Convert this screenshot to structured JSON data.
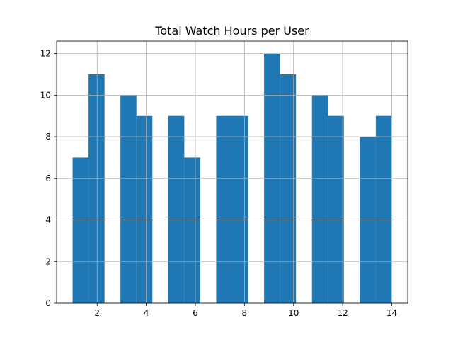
{
  "chart_data": {
    "type": "bar",
    "title": "Total Watch Hours per User",
    "xlabel": "",
    "ylabel": "",
    "xlim": [
      0.35,
      14.65
    ],
    "ylim": [
      0,
      12.6
    ],
    "x_ticks": [
      2,
      4,
      6,
      8,
      10,
      12,
      14
    ],
    "y_ticks": [
      0,
      2,
      4,
      6,
      8,
      10,
      12
    ],
    "grid": true,
    "bins": [
      {
        "x0": 1.0,
        "x1": 1.65,
        "value": 7
      },
      {
        "x0": 1.65,
        "x1": 2.3,
        "value": 11
      },
      {
        "x0": 2.3,
        "x1": 2.95,
        "value": 0
      },
      {
        "x0": 2.95,
        "x1": 3.6,
        "value": 10
      },
      {
        "x0": 3.6,
        "x1": 4.25,
        "value": 9
      },
      {
        "x0": 4.25,
        "x1": 4.9,
        "value": 0
      },
      {
        "x0": 4.9,
        "x1": 5.55,
        "value": 9
      },
      {
        "x0": 5.55,
        "x1": 6.2,
        "value": 7
      },
      {
        "x0": 6.2,
        "x1": 6.85,
        "value": 0
      },
      {
        "x0": 6.85,
        "x1": 7.5,
        "value": 9
      },
      {
        "x0": 7.5,
        "x1": 8.15,
        "value": 9
      },
      {
        "x0": 8.15,
        "x1": 8.8,
        "value": 0
      },
      {
        "x0": 8.8,
        "x1": 9.45,
        "value": 12
      },
      {
        "x0": 9.45,
        "x1": 10.1,
        "value": 11
      },
      {
        "x0": 10.1,
        "x1": 10.75,
        "value": 0
      },
      {
        "x0": 10.75,
        "x1": 11.4,
        "value": 10
      },
      {
        "x0": 11.4,
        "x1": 12.05,
        "value": 9
      },
      {
        "x0": 12.05,
        "x1": 12.7,
        "value": 0
      },
      {
        "x0": 12.7,
        "x1": 13.35,
        "value": 8
      },
      {
        "x0": 13.35,
        "x1": 14.0,
        "value": 9
      }
    ],
    "bar_color": "#1f77b4",
    "grid_color": "#b0b0b0"
  }
}
